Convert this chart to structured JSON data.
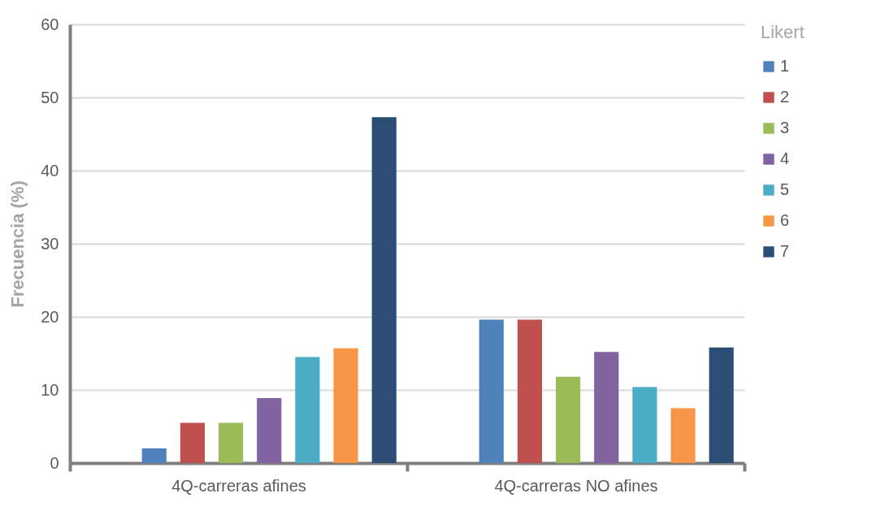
{
  "chart_data": {
    "type": "bar",
    "ylabel": "Frecuencia (%)",
    "legend_title": "Likert",
    "categories": [
      "4Q-carreras afines",
      "4Q-carreras NO afines"
    ],
    "series": [
      {
        "name": "1",
        "color": "#4f81bd",
        "values": [
          2.0,
          19.6
        ]
      },
      {
        "name": "2",
        "color": "#c0504d",
        "values": [
          5.5,
          19.6
        ]
      },
      {
        "name": "3",
        "color": "#9bbb59",
        "values": [
          5.5,
          11.8
        ]
      },
      {
        "name": "4",
        "color": "#8064a2",
        "values": [
          8.9,
          15.2
        ]
      },
      {
        "name": "5",
        "color": "#4bacc6",
        "values": [
          14.5,
          10.4
        ]
      },
      {
        "name": "6",
        "color": "#f79646",
        "values": [
          15.7,
          7.5
        ]
      },
      {
        "name": "7",
        "color": "#2c4d75",
        "values": [
          47.3,
          15.8
        ]
      }
    ],
    "ylim": [
      0,
      60
    ],
    "yticks": [
      0,
      10,
      20,
      30,
      40,
      50,
      60
    ],
    "grid": "y",
    "legend": "right"
  }
}
